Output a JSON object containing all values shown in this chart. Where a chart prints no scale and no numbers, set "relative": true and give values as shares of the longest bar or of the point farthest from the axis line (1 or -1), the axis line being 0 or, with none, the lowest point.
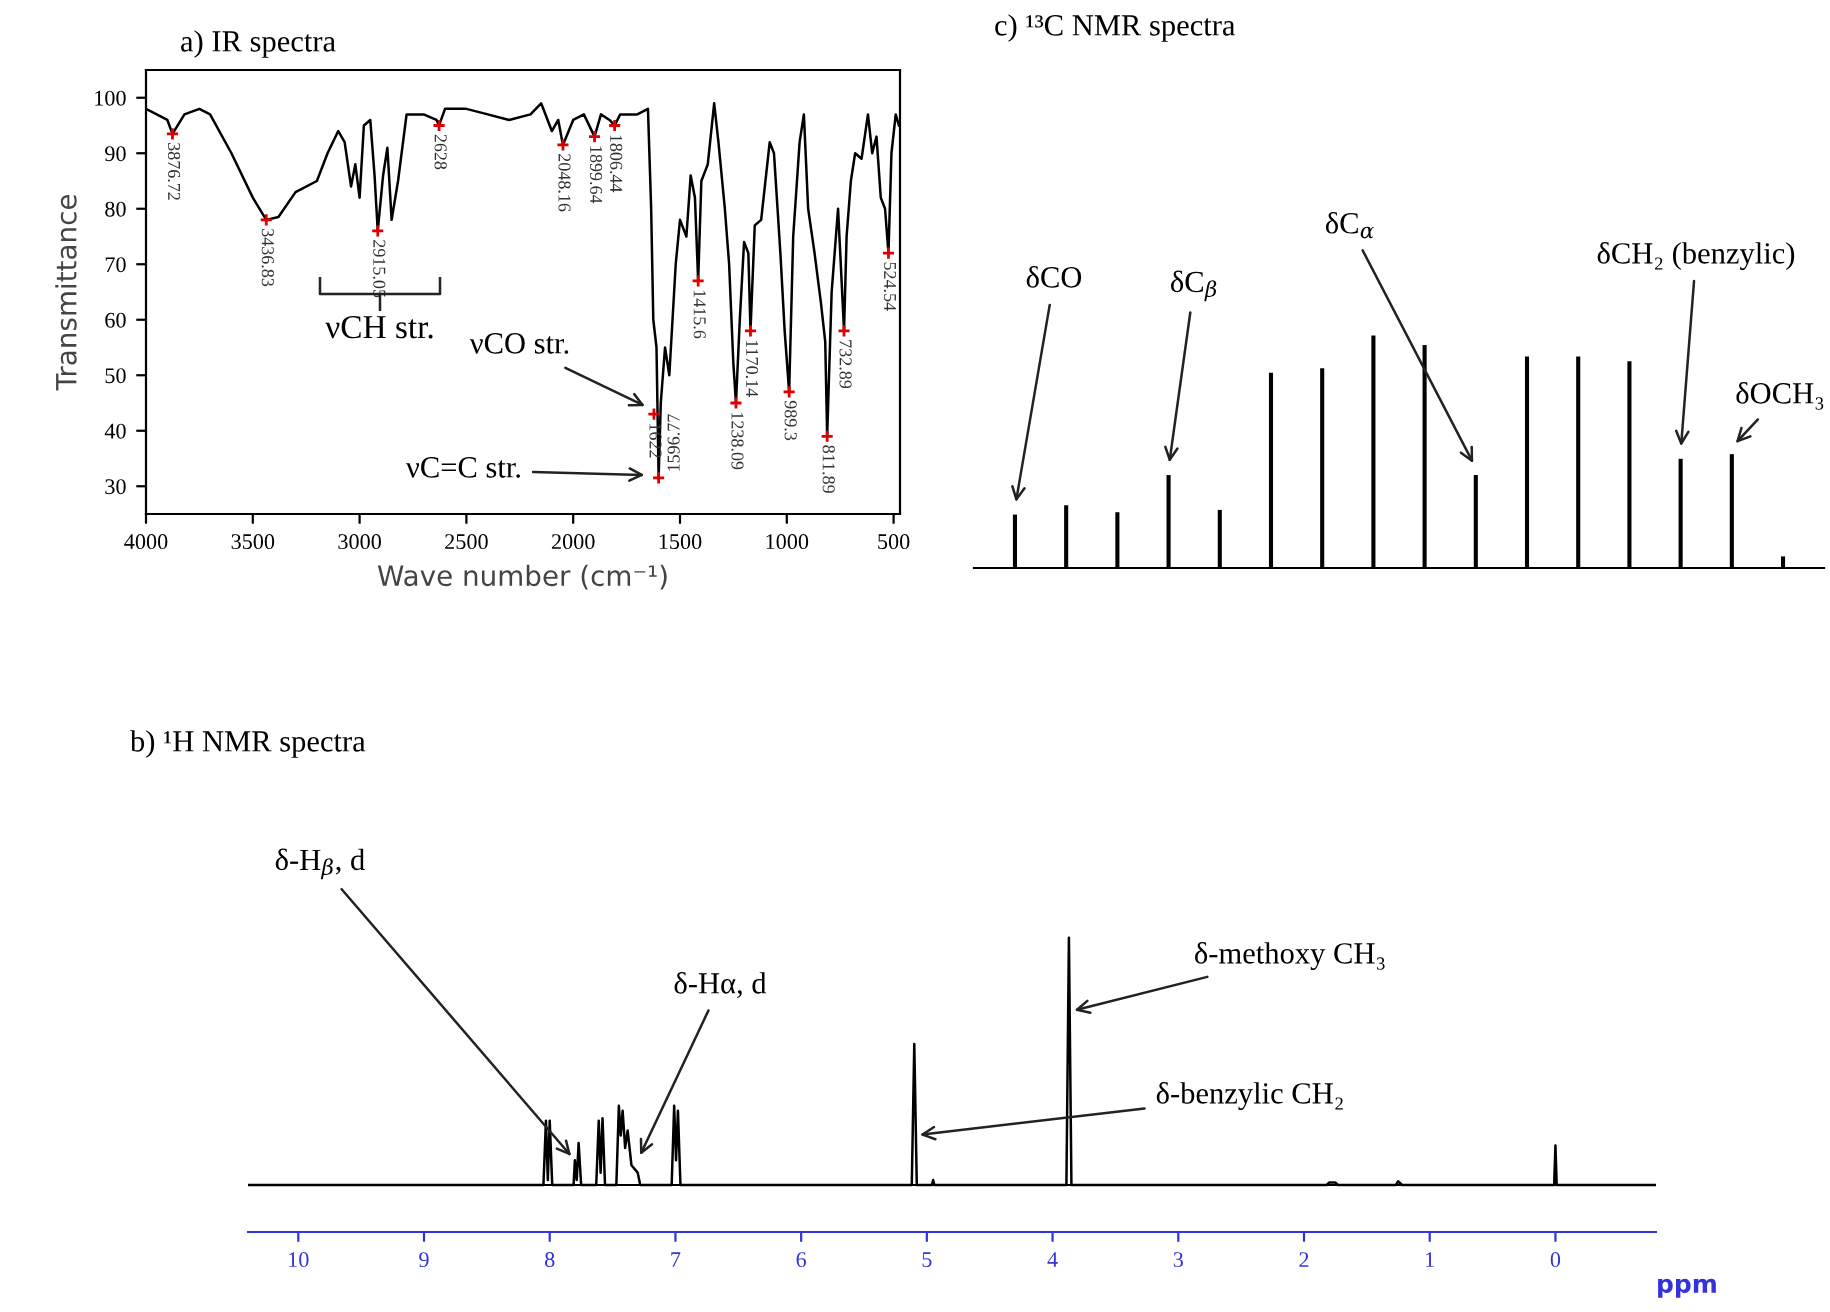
{
  "chart_data": [
    {
      "type": "line",
      "title": "a) IR spectra",
      "xlabel": "Wave number (cm⁻¹)",
      "ylabel": "Transmittance",
      "color": "#000000",
      "x": [
        4000,
        3900,
        3876,
        3820,
        3750,
        3700,
        3600,
        3500,
        3437,
        3380,
        3300,
        3200,
        3150,
        3100,
        3070,
        3040,
        3020,
        3000,
        2980,
        2950,
        2930,
        2915,
        2890,
        2870,
        2850,
        2820,
        2780,
        2700,
        2640,
        2628,
        2600,
        2500,
        2400,
        2300,
        2200,
        2150,
        2100,
        2070,
        2048,
        2000,
        1950,
        1900,
        1870,
        1830,
        1806,
        1780,
        1700,
        1650,
        1635,
        1625,
        1610,
        1600,
        1590,
        1570,
        1550,
        1520,
        1500,
        1470,
        1450,
        1430,
        1415,
        1400,
        1370,
        1340,
        1320,
        1290,
        1270,
        1250,
        1238,
        1220,
        1200,
        1180,
        1170,
        1150,
        1120,
        1080,
        1060,
        1030,
        1010,
        989,
        970,
        940,
        920,
        900,
        870,
        840,
        820,
        811,
        790,
        760,
        732,
        720,
        700,
        680,
        650,
        620,
        600,
        580,
        560,
        540,
        524,
        510,
        490,
        475
      ],
      "values": [
        98,
        96,
        93.5,
        97,
        98,
        97,
        90,
        82,
        78,
        78.5,
        83,
        85,
        90,
        94,
        92,
        84,
        88,
        82,
        95,
        96,
        86,
        76,
        86,
        91,
        78,
        85,
        97,
        97,
        96,
        95,
        98,
        98,
        97,
        96,
        97,
        99,
        94,
        96,
        91.5,
        96,
        97,
        93,
        97,
        96,
        95,
        97,
        97,
        98,
        80,
        60,
        55,
        31.5,
        45,
        55,
        50,
        70,
        78,
        75,
        86,
        82,
        67,
        85,
        88,
        99,
        92,
        80,
        70,
        52,
        45,
        60,
        74,
        72,
        58,
        77,
        78,
        92,
        90,
        72,
        58,
        47,
        75,
        92,
        97,
        80,
        72,
        63,
        56,
        39,
        65,
        80,
        58,
        75,
        85,
        90,
        89,
        97,
        90,
        93,
        82,
        80,
        72,
        90,
        97,
        95
      ],
      "xlim": [
        4000,
        470
      ],
      "ylim": [
        25,
        105
      ],
      "xticks": [
        4000,
        3500,
        3000,
        2500,
        2000,
        1500,
        1000,
        500
      ],
      "yticks": [
        30,
        40,
        50,
        60,
        70,
        80,
        90,
        100
      ],
      "annotations": [
        {
          "text": "3876.72",
          "x": 3876,
          "y": 93.5
        },
        {
          "text": "3436.83",
          "x": 3437,
          "y": 78
        },
        {
          "text": "2915.05",
          "x": 2915,
          "y": 76
        },
        {
          "text": "2628",
          "x": 2628,
          "y": 95
        },
        {
          "text": "2048.16",
          "x": 2048,
          "y": 91.5
        },
        {
          "text": "1899.64",
          "x": 1900,
          "y": 93
        },
        {
          "text": "1806.44",
          "x": 1806,
          "y": 95
        },
        {
          "text": "1622",
          "x": 1622,
          "y": 43
        },
        {
          "text": "1596.77",
          "x": 1600,
          "y": 31.5
        },
        {
          "text": "1415.6",
          "x": 1415,
          "y": 67
        },
        {
          "text": "1238.09",
          "x": 1238,
          "y": 45
        },
        {
          "text": "1170.14",
          "x": 1170,
          "y": 58
        },
        {
          "text": "989.3",
          "x": 989,
          "y": 47
        },
        {
          "text": "811.89",
          "x": 811,
          "y": 39
        },
        {
          "text": "732.89",
          "x": 732,
          "y": 58
        },
        {
          "text": "524.54",
          "x": 524,
          "y": 72
        },
        "νCH str.",
        {
          "text": "νCO str.",
          "x": 1640,
          "y": 44
        },
        {
          "text": "νC=C str.",
          "x": 1640,
          "y": 32
        }
      ]
    },
    {
      "type": "bar",
      "title": "c) ¹³C NMR spectra",
      "relative": true,
      "color": "#000000",
      "categories": [
        null,
        null,
        null,
        null,
        null,
        null,
        null,
        null,
        null,
        null,
        null,
        null,
        null,
        null,
        null,
        null
      ],
      "values": [
        0.23,
        0.27,
        0.24,
        0.4,
        0.25,
        0.84,
        0.86,
        1,
        0.96,
        0.4,
        0.91,
        0.91,
        0.89,
        0.47,
        0.49,
        0.05
      ],
      "annotations": [
        "δCO",
        "δC$_{β}$",
        "δC$_{α}$",
        "δCH₂ (benzylic)",
        "δOCH₃"
      ]
    },
    {
      "type": "line",
      "title": "b) ¹H NMR spectra",
      "xlabel": "ppm",
      "relative": true,
      "color": "#000000",
      "x": [
        10.4,
        8.05,
        8.03,
        8.015,
        8.0,
        7.98,
        7.81,
        7.8,
        7.785,
        7.77,
        7.75,
        7.63,
        7.61,
        7.595,
        7.58,
        7.56,
        7.47,
        7.45,
        7.435,
        7.42,
        7.4,
        7.38,
        7.35,
        7.3,
        7.28,
        7.03,
        7.01,
        6.995,
        6.98,
        6.96,
        5.12,
        5.1,
        5.08,
        4.96,
        4.95,
        4.94,
        3.89,
        3.87,
        3.85,
        1.82,
        1.8,
        1.75,
        1.73,
        1.27,
        1.25,
        1.22,
        0.01,
        0.0,
        -0.01,
        -0.8
      ],
      "values": [
        0,
        0,
        0.26,
        0.02,
        0.26,
        0,
        0,
        0.1,
        0.02,
        0.17,
        0,
        0,
        0.26,
        0.05,
        0.27,
        0,
        0,
        0.32,
        0.2,
        0.3,
        0.15,
        0.22,
        0.08,
        0.05,
        0,
        0,
        0.32,
        0.1,
        0.3,
        0,
        0,
        0.57,
        0,
        0,
        0.02,
        0,
        0,
        1,
        0,
        0,
        0.01,
        0.01,
        0,
        0,
        0.015,
        0,
        0,
        0.16,
        0,
        0
      ],
      "xlim": [
        10.4,
        -0.8
      ],
      "xticks": [
        10,
        9,
        8,
        7,
        6,
        5,
        4,
        3,
        2,
        1,
        0
      ],
      "annotations": [
        {
          "text": "δ-H$_{β}$, d",
          "x": 7.8,
          "y": 0.1
        },
        {
          "text": "δ-Hα, d",
          "x": 7.3,
          "y": 0.1
        },
        {
          "text": "δ-methoxy CH₃",
          "x": 3.87,
          "y": 0.7
        },
        {
          "text": "δ-benzylic CH₂",
          "x": 5.1,
          "y": 0.2
        }
      ]
    }
  ]
}
